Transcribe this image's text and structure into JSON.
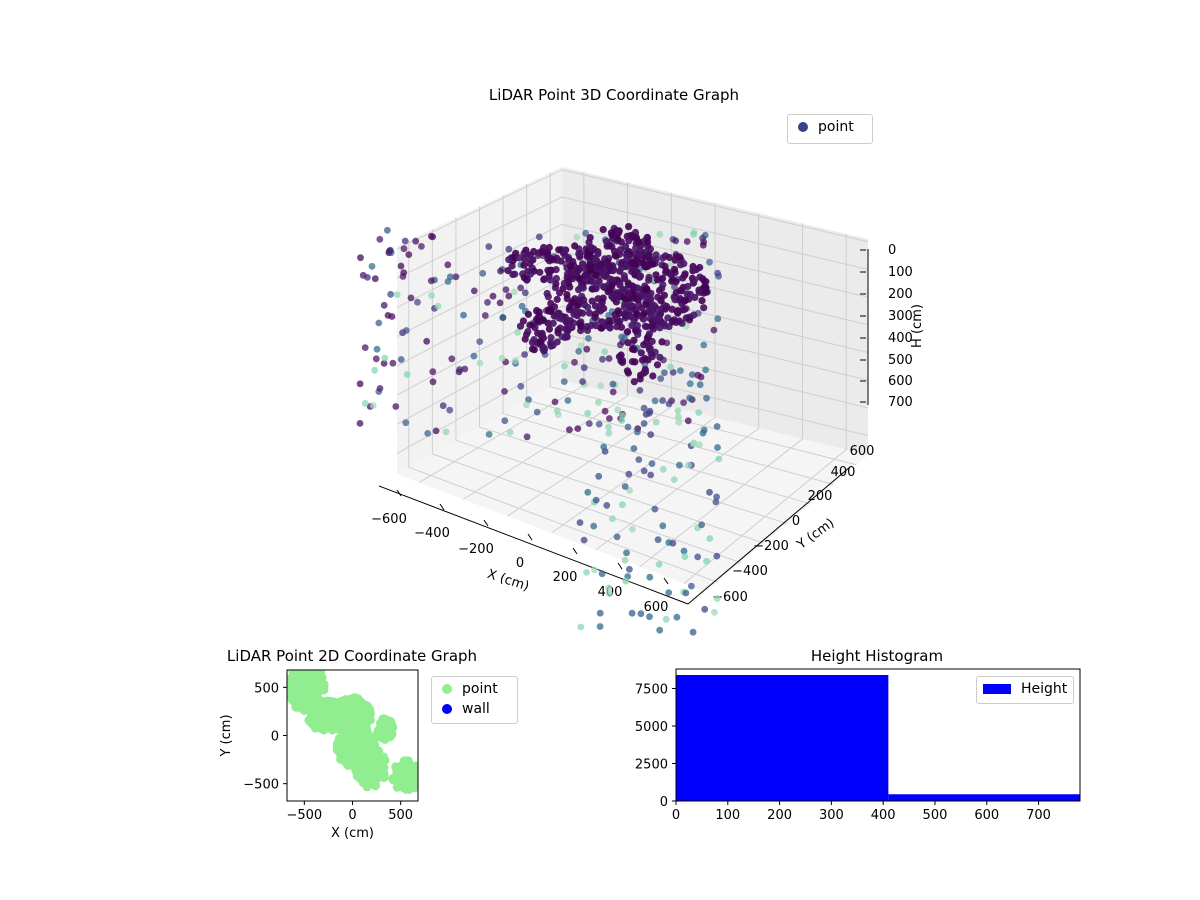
{
  "chart_data": [
    {
      "type": "scatter",
      "projection": "3d",
      "title": "LiDAR Point 3D Coordinate Graph",
      "xlabel": "X (cm)",
      "ylabel": "Y (cm)",
      "zlabel": "H (cm)",
      "xlim": [
        -700,
        700
      ],
      "ylim": [
        -700,
        700
      ],
      "zlim": [
        780,
        0
      ],
      "z_inverted": true,
      "xticks": [
        "−600",
        "−400",
        "−200",
        "0",
        "200",
        "400",
        "600"
      ],
      "yticks": [
        "−600",
        "−400",
        "−200",
        "0",
        "200",
        "400",
        "600"
      ],
      "zticks": [
        "0",
        "100",
        "200",
        "300",
        "400",
        "500",
        "600",
        "700"
      ],
      "grid": true,
      "legend": {
        "position": "upper-right",
        "entries": [
          {
            "label": "point",
            "color": "#3b3f8e"
          }
        ]
      },
      "colormap": "viridis",
      "series": [
        {
          "name": "point",
          "note_colors": "dense purple shell near center, sparse blue/teal points at low height"
        }
      ]
    },
    {
      "type": "scatter",
      "title": "LiDAR Point 2D Coordinate Graph",
      "xlabel": "X (cm)",
      "ylabel": "Y (cm)",
      "xlim": [
        -680,
        680
      ],
      "ylim": [
        -680,
        680
      ],
      "xticks": [
        "−500",
        "0",
        "500"
      ],
      "yticks": [
        "500",
        "0",
        "−500"
      ],
      "legend": {
        "position": "outside-right",
        "entries": [
          {
            "label": "point",
            "color": "#90ee90"
          },
          {
            "label": "wall",
            "color": "#0000ff"
          }
        ]
      },
      "series": [
        {
          "name": "point",
          "color": "#90ee90"
        },
        {
          "name": "wall",
          "color": "#0000ff"
        }
      ]
    },
    {
      "type": "bar",
      "subtype": "histogram",
      "title": "Height Histogram",
      "xlim": [
        0,
        780
      ],
      "ylim": [
        0,
        8800
      ],
      "xticks": [
        "0",
        "100",
        "200",
        "300",
        "400",
        "500",
        "600",
        "700"
      ],
      "yticks": [
        "0",
        "2500",
        "5000",
        "7500"
      ],
      "bins": [
        [
          0,
          410
        ],
        [
          410,
          780
        ]
      ],
      "values": [
        8400,
        450
      ],
      "color": "#0000ff",
      "legend": {
        "position": "upper-right",
        "entries": [
          {
            "label": "Height",
            "color": "#0000ff"
          }
        ]
      }
    }
  ]
}
